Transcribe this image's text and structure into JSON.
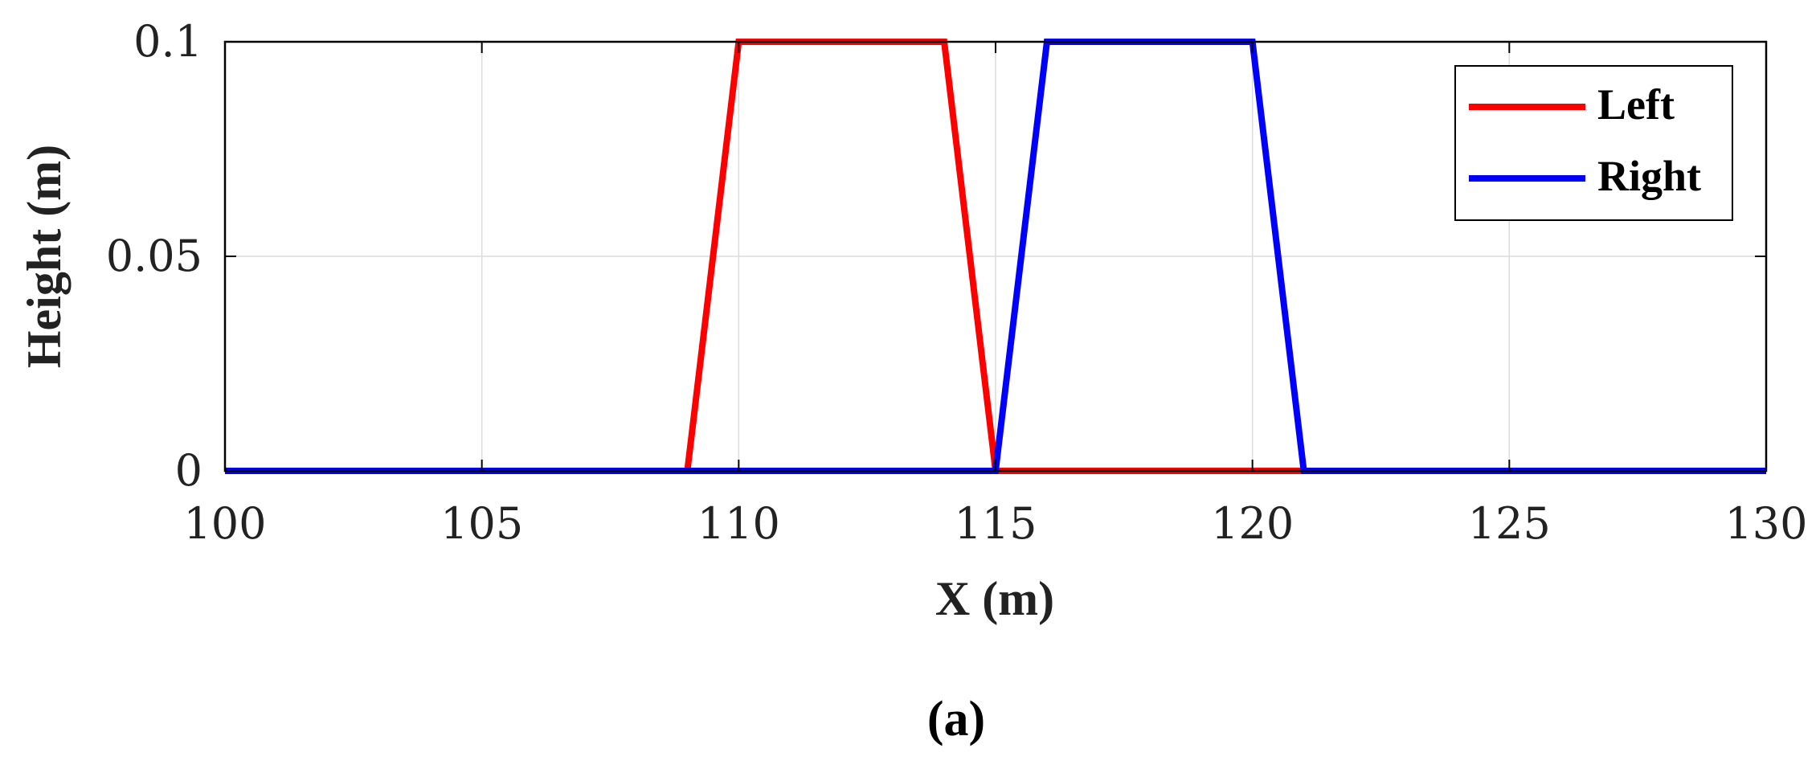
{
  "chart_data": {
    "type": "line",
    "caption": "(a)",
    "xlabel": "X (m)",
    "ylabel": "Height (m)",
    "xlim": [
      100,
      130
    ],
    "ylim": [
      0,
      0.1
    ],
    "x_ticks": [
      100,
      105,
      110,
      115,
      120,
      125,
      130
    ],
    "x_tick_labels": [
      "100",
      "105",
      "110",
      "115",
      "120",
      "125",
      "130"
    ],
    "y_ticks": [
      0,
      0.05,
      0.1
    ],
    "y_tick_labels": [
      "0",
      "0.05",
      "0.1"
    ],
    "grid": true,
    "legend_position": "top-right",
    "series": [
      {
        "name": "Left",
        "color": "#ff0000",
        "x": [
          100,
          109,
          110,
          114,
          115,
          121,
          130
        ],
        "y": [
          0,
          0,
          0.1,
          0.1,
          0,
          0,
          0
        ]
      },
      {
        "name": "Right",
        "color": "#0000ff",
        "x": [
          100,
          115,
          116,
          120,
          121,
          130
        ],
        "y": [
          0,
          0,
          0.1,
          0.1,
          0,
          0
        ]
      }
    ]
  }
}
